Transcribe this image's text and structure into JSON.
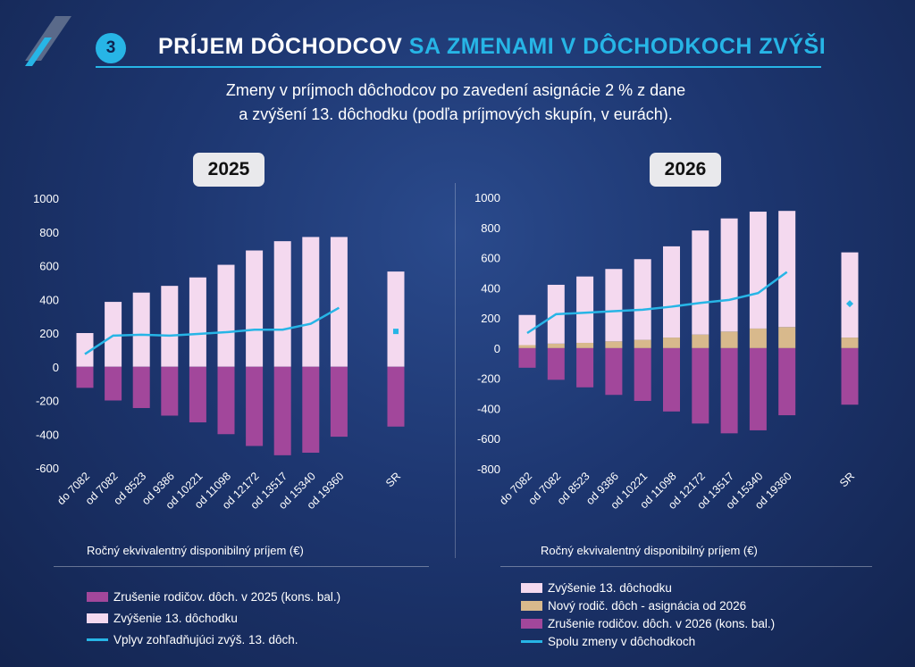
{
  "header": {
    "badge": "3",
    "title_main": "PRÍJEM DÔCHODCOV",
    "title_highlight": "SA ZMENAMI V DÔCHODKOCH ZVÝŠI",
    "subtitle_line1": "Zmeny v príjmoch dôchodcov po zavedení asignácie 2 % z dane",
    "subtitle_line2": "a zvýšení 13. dôchodku (podľa príjmových skupín, v eurách)."
  },
  "colors": {
    "accent": "#27b5e6",
    "pink": "#f4d9ef",
    "purple": "#a2479b",
    "tan": "#d8b98c",
    "line": "#27b5e6"
  },
  "chart_data": [
    {
      "type": "bar",
      "title": "2025",
      "categories": [
        "do 7082",
        "od 7082",
        "od 8523",
        "od 9386",
        "od 10221",
        "od 11098",
        "od 12172",
        "od 13517",
        "od 15340",
        "od 19360",
        "SR"
      ],
      "xlabel": "Ročný ekvivalentný disponibilný príjem (€)",
      "ylim": [
        -600,
        1000
      ],
      "yticks": [
        "1000",
        "800",
        "600",
        "400",
        "200",
        "0",
        "-200",
        "-400",
        "-600"
      ],
      "series": [
        {
          "name": "Zrušenie rodičov. dôch. v 2025 (kons. bal.)",
          "kind": "bar",
          "values": [
            -125,
            -200,
            -245,
            -290,
            -330,
            -400,
            -470,
            -525,
            -510,
            -415,
            -355
          ]
        },
        {
          "name": "Zvýšenie 13. dôchodku",
          "kind": "bar",
          "values": [
            200,
            385,
            440,
            480,
            530,
            605,
            690,
            745,
            770,
            770,
            565
          ]
        },
        {
          "name": "Vplyv zohľadňujúci zvýš. 13. dôch.",
          "kind": "line",
          "values": [
            75,
            185,
            190,
            185,
            195,
            205,
            220,
            220,
            255,
            350,
            210
          ]
        }
      ],
      "legend": "bottom"
    },
    {
      "type": "bar",
      "title": "2026",
      "categories": [
        "do 7082",
        "od 7082",
        "od 8523",
        "od 9386",
        "od 10221",
        "od 11098",
        "od 12172",
        "od 13517",
        "od 15340",
        "od 19360",
        "SR"
      ],
      "xlabel": "Ročný ekvivalentný disponibilný príjem (€)",
      "ylim": [
        -800,
        1000
      ],
      "yticks": [
        "1000",
        "800",
        "600",
        "400",
        "200",
        "0",
        "-200",
        "-400",
        "-600",
        "-800"
      ],
      "series": [
        {
          "name": "Zvýšenie 13. dôchodku",
          "kind": "bar",
          "values": [
            200,
            390,
            440,
            480,
            535,
            605,
            690,
            750,
            775,
            770,
            565
          ]
        },
        {
          "name": "Nový rodič. dôch - asignácia od 2026",
          "kind": "bar",
          "values": [
            20,
            30,
            35,
            45,
            55,
            70,
            90,
            110,
            130,
            140,
            70
          ]
        },
        {
          "name": "Zrušenie rodičov. dôch. v 2026 (kons. bal.)",
          "kind": "bar",
          "values": [
            -130,
            -210,
            -260,
            -310,
            -350,
            -420,
            -500,
            -565,
            -545,
            -445,
            -375
          ]
        },
        {
          "name": "Spolu zmeny v dôchodkoch",
          "kind": "line",
          "values": [
            100,
            225,
            235,
            245,
            255,
            275,
            300,
            320,
            365,
            505,
            295
          ]
        }
      ],
      "legend": "bottom"
    }
  ]
}
